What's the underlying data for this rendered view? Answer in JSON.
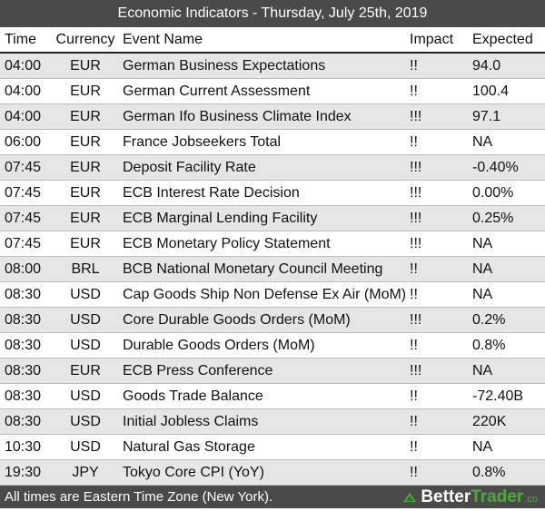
{
  "title": "Economic Indicators - Thursday, July 25th, 2019",
  "columns": {
    "time": "Time",
    "currency": "Currency",
    "event": "Event Name",
    "impact": "Impact",
    "expected": "Expected"
  },
  "rows": [
    {
      "time": "04:00",
      "currency": "EUR",
      "event": "German Business Expectations",
      "impact": "!!",
      "expected": "94.0"
    },
    {
      "time": "04:00",
      "currency": "EUR",
      "event": "German Current Assessment",
      "impact": "!!",
      "expected": "100.4"
    },
    {
      "time": "04:00",
      "currency": "EUR",
      "event": "German Ifo Business Climate Index",
      "impact": "!!!",
      "expected": "97.1"
    },
    {
      "time": "06:00",
      "currency": "EUR",
      "event": "France Jobseekers Total",
      "impact": "!!",
      "expected": "NA"
    },
    {
      "time": "07:45",
      "currency": "EUR",
      "event": "Deposit Facility Rate",
      "impact": "!!!",
      "expected": "-0.40%"
    },
    {
      "time": "07:45",
      "currency": "EUR",
      "event": "ECB Interest Rate Decision",
      "impact": "!!!",
      "expected": "0.00%"
    },
    {
      "time": "07:45",
      "currency": "EUR",
      "event": "ECB Marginal Lending Facility",
      "impact": "!!!",
      "expected": "0.25%"
    },
    {
      "time": "07:45",
      "currency": "EUR",
      "event": "ECB Monetary Policy Statement",
      "impact": "!!!",
      "expected": "NA"
    },
    {
      "time": "08:00",
      "currency": "BRL",
      "event": "BCB National Monetary Council Meeting",
      "impact": "!!",
      "expected": "NA"
    },
    {
      "time": "08:30",
      "currency": "USD",
      "event": "Cap Goods Ship Non Defense Ex Air (MoM)",
      "impact": "!!",
      "expected": "NA"
    },
    {
      "time": "08:30",
      "currency": "USD",
      "event": "Core Durable Goods Orders (MoM)",
      "impact": "!!!",
      "expected": "0.2%"
    },
    {
      "time": "08:30",
      "currency": "USD",
      "event": "Durable Goods Orders (MoM)",
      "impact": "!!",
      "expected": "0.8%"
    },
    {
      "time": "08:30",
      "currency": "EUR",
      "event": "ECB Press Conference",
      "impact": "!!!",
      "expected": "NA"
    },
    {
      "time": "08:30",
      "currency": "USD",
      "event": "Goods Trade Balance",
      "impact": "!!",
      "expected": "-72.40B"
    },
    {
      "time": "08:30",
      "currency": "USD",
      "event": "Initial Jobless Claims",
      "impact": "!!",
      "expected": "220K"
    },
    {
      "time": "10:30",
      "currency": "USD",
      "event": "Natural Gas Storage",
      "impact": "!!",
      "expected": "NA"
    },
    {
      "time": "19:30",
      "currency": "JPY",
      "event": "Tokyo Core CPI (YoY)",
      "impact": "!!",
      "expected": "0.8%"
    }
  ],
  "footer": {
    "note": "All times are Eastern Time Zone (New York).",
    "brand_part1": "Better",
    "brand_part2": "Trader",
    "brand_suffix": ".co",
    "brand_icon": "bettertrader-logo-icon",
    "brand_color": "#4fa83d"
  },
  "colors": {
    "bar": "#4a4a4a",
    "row_alt": "#e6e6e6"
  }
}
